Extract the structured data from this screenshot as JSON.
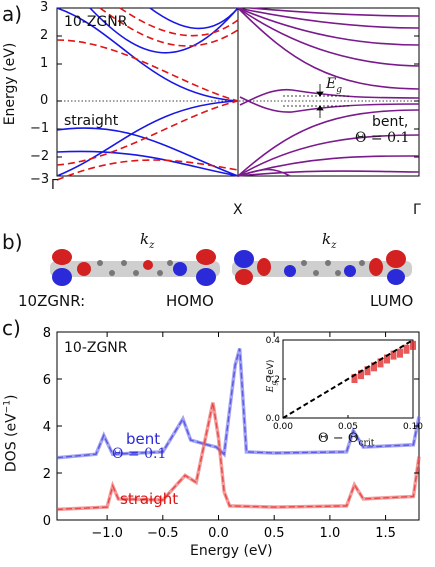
{
  "panel_a": {
    "label": "a)",
    "left_title": "10-ZGNR",
    "left_note": "straight",
    "right_note_1": "bent,",
    "right_note_2": "Θ = 0.1",
    "gap_label": "E",
    "gap_label_sub": "g",
    "ylabel": "Energy (eV)",
    "yticks": [
      "3",
      "2",
      "1",
      "0",
      "−1",
      "−2",
      "−3"
    ],
    "xticks": [
      "Γ",
      "X",
      "Γ"
    ],
    "colors": {
      "straight_solid": "#1818e6",
      "straight_dashed": "#e01414",
      "bent": "#7a1a8c"
    }
  },
  "panel_b": {
    "label": "b)",
    "kz_left": "k",
    "kz_left_sub": "z",
    "kz_right": "k",
    "kz_right_sub": "z",
    "name": "10ZGNR:",
    "homo": "HOMO",
    "lumo": "LUMO"
  },
  "panel_c": {
    "label": "c)",
    "title": "10-ZGNR",
    "ylabel": "DOS (eV",
    "ylabel_sup": "−1",
    "ylabel_end": ")",
    "xlabel": "Energy (eV)",
    "legend_bent": "bent",
    "legend_theta": "Θ = 0.1",
    "legend_straight": "straight",
    "inset_ylabel": "E",
    "inset_ylabel_sub": "g",
    "inset_ylabel_unit": " (eV)",
    "inset_xlabel": "Θ − Θ",
    "inset_xlabel_sub": "crit"
  },
  "chart_data": [
    {
      "type": "line",
      "title": "10-ZGNR",
      "xlabel": "",
      "ylabel": "Energy (eV)",
      "ylim": [
        -3,
        3
      ],
      "xticks": [
        "Γ",
        "X",
        "Γ"
      ],
      "series": [
        {
          "name": "straight",
          "style": "solid-blue",
          "x": [
            0,
            0.2,
            0.4,
            0.6,
            0.8,
            1.0
          ],
          "y": [
            3.0,
            2.9,
            2.2,
            0.9,
            0.15,
            0.0
          ]
        },
        {
          "name": "straight",
          "style": "solid-blue",
          "x": [
            0,
            0.2,
            0.4,
            0.6,
            0.8,
            1.0
          ],
          "y": [
            -3.0,
            -2.9,
            -2.2,
            -0.9,
            -0.15,
            0.0
          ]
        },
        {
          "name": "bent, Θ = 0.1",
          "style": "purple",
          "x": [
            1.0,
            1.2,
            1.4,
            1.6,
            1.8,
            2.0
          ],
          "y": [
            0.35,
            0.7,
            1.5,
            2.3,
            2.8,
            3.0
          ]
        },
        {
          "name": "bent, Θ = 0.1",
          "style": "purple",
          "x": [
            1.0,
            1.2,
            1.4,
            1.6,
            1.8,
            2.0
          ],
          "y": [
            -0.35,
            -0.7,
            -1.5,
            -2.3,
            -2.8,
            -3.0
          ]
        }
      ]
    },
    {
      "type": "line",
      "title": "10-ZGNR",
      "xlabel": "Energy (eV)",
      "ylabel": "DOS (eV−1)",
      "xlim": [
        -1.45,
        1.8
      ],
      "ylim": [
        0,
        8
      ],
      "xticks": [
        "−1.0",
        "−0.5",
        "0.0",
        "0.5",
        "1.0",
        "1.5"
      ],
      "yticks": [
        "0",
        "2",
        "4",
        "6",
        "8"
      ],
      "series": [
        {
          "name": "bent Θ = 0.1",
          "color": "#5a5ae8",
          "x": [
            -1.45,
            -1.1,
            -1.03,
            -0.95,
            -0.5,
            -0.32,
            -0.25,
            -0.1,
            -0.02,
            0.05,
            0.15,
            0.19,
            0.25,
            0.5,
            1.15,
            1.21,
            1.3,
            1.75,
            1.8
          ],
          "y": [
            2.65,
            2.8,
            3.6,
            2.8,
            2.9,
            4.3,
            3.4,
            3.2,
            3.1,
            2.8,
            6.6,
            7.3,
            2.9,
            2.85,
            2.9,
            3.8,
            3.1,
            3.2,
            4.4
          ]
        },
        {
          "name": "straight",
          "color": "#e84a4a",
          "x": [
            -1.45,
            -1.0,
            -0.95,
            -0.9,
            -0.5,
            -0.3,
            -0.2,
            -0.05,
            0.0,
            0.05,
            0.1,
            0.5,
            1.15,
            1.22,
            1.3,
            1.75,
            1.8
          ],
          "y": [
            0.45,
            0.55,
            1.45,
            0.9,
            0.85,
            1.9,
            1.6,
            5.0,
            3.5,
            1.2,
            0.6,
            0.55,
            0.6,
            1.5,
            0.9,
            1.0,
            2.7
          ]
        }
      ]
    },
    {
      "type": "scatter",
      "xlabel": "Θ − Θcrit",
      "ylabel": "Eg (eV)",
      "xlim": [
        0.0,
        0.1
      ],
      "ylim": [
        0.0,
        0.4
      ],
      "xticks": [
        "0.00",
        "0.05",
        "0.10"
      ],
      "yticks": [
        "0.0",
        "0.2",
        "0.4"
      ],
      "series": [
        {
          "name": "",
          "x": [
            0.055,
            0.06,
            0.065,
            0.07,
            0.075,
            0.08,
            0.085,
            0.09,
            0.095,
            0.1
          ],
          "y": [
            0.2,
            0.22,
            0.24,
            0.26,
            0.28,
            0.3,
            0.32,
            0.33,
            0.35,
            0.37
          ]
        },
        {
          "name": "",
          "x": [
            0.0,
            0.1
          ],
          "y": [
            0.0,
            0.4
          ]
        }
      ]
    }
  ]
}
